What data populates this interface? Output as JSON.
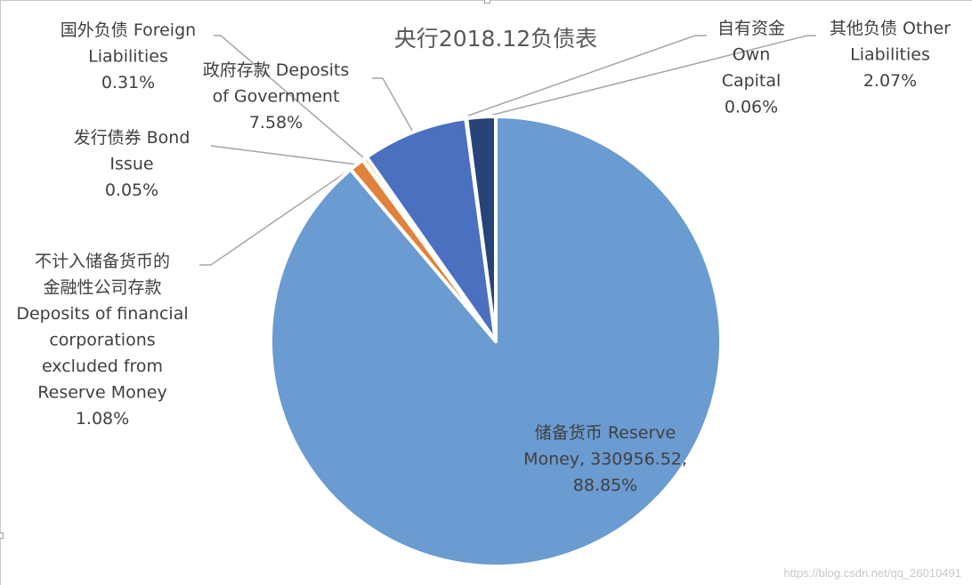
{
  "chart_data": {
    "type": "pie",
    "title": "央行2018.12负债表",
    "slices": [
      {
        "name": "储备货币  Reserve Money",
        "value": 330956.52,
        "percent": 88.85,
        "color": "#6a9bd1",
        "label_lines": [
          "储备货币  Reserve",
          "Money, 330956.52,",
          "88.85%"
        ]
      },
      {
        "name": "不计入储备货币的金融性公司存款 Deposits of financial corporations excluded from Reserve Money",
        "percent": 1.08,
        "color": "#e0823c",
        "label_lines": [
          "不计入储备货币的",
          "金融性公司存款",
          "Deposits of financial",
          "corporations",
          "excluded from",
          "Reserve Money",
          "1.08%"
        ]
      },
      {
        "name": "发行债券 Bond Issue",
        "percent": 0.05,
        "color": "#a5a5a5",
        "label_lines": [
          "发行债券  Bond",
          "Issue",
          "0.05%"
        ]
      },
      {
        "name": "国外负债 Foreign Liabilities",
        "percent": 0.31,
        "color": "#f2c12e",
        "label_lines": [
          "国外负债  Foreign",
          "Liabilities",
          "0.31%"
        ]
      },
      {
        "name": "政府存款 Deposits of Government",
        "percent": 7.58,
        "color": "#4a70bf",
        "label_lines": [
          "政府存款  Deposits",
          "of Government",
          "7.58%"
        ]
      },
      {
        "name": "自有资金 Own Capital",
        "percent": 0.06,
        "color": "#70ad47",
        "label_lines": [
          "自有资金",
          "Own",
          "Capital",
          "0.06%"
        ]
      },
      {
        "name": "其他负债 Other Liabilities",
        "percent": 2.07,
        "color": "#264478",
        "label_lines": [
          "其他负债  Other",
          "Liabilities",
          "2.07%"
        ]
      }
    ],
    "legend": "none"
  },
  "watermark": "https://blog.csdn.net/qq_26010491"
}
